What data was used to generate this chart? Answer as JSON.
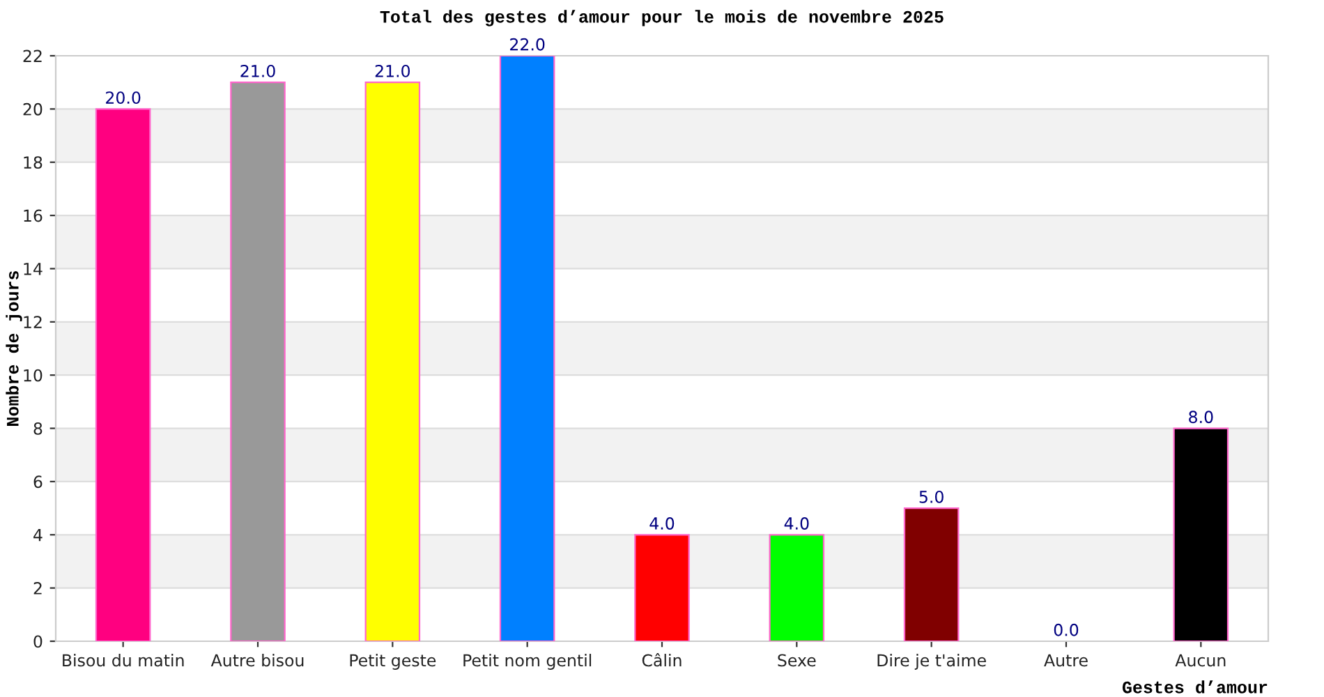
{
  "chart_data": {
    "type": "bar",
    "title": "Total des gestes d’amour pour le mois de novembre 2025",
    "xlabel": "Gestes d’amour",
    "ylabel": "Nombre de jours",
    "categories": [
      "Bisou du matin",
      "Autre bisou",
      "Petit geste",
      "Petit nom gentil",
      "Câlin",
      "Sexe",
      "Dire je t'aime",
      "Autre",
      "Aucun"
    ],
    "values": [
      20,
      21,
      21,
      22,
      4,
      4,
      5,
      0,
      8
    ],
    "value_labels": [
      "20.0",
      "21.0",
      "21.0",
      "22.0",
      "4.0",
      "4.0",
      "5.0",
      "0.0",
      "8.0"
    ],
    "colors": [
      "#ff0080",
      "#999999",
      "#ffff00",
      "#0080ff",
      "#ff0000",
      "#00ff00",
      "#800000",
      "#0000ff",
      "#000000"
    ],
    "ylim": [
      0,
      22
    ],
    "yticks": [
      0,
      2,
      4,
      6,
      8,
      10,
      12,
      14,
      16,
      18,
      20,
      22
    ],
    "grid": "y",
    "bands": [
      {
        "axis": "y",
        "from": 2,
        "to": 4,
        "color": "#f2f2f2"
      },
      {
        "axis": "y",
        "from": 6,
        "to": 8,
        "color": "#f2f2f2"
      },
      {
        "axis": "y",
        "from": 10,
        "to": 12,
        "color": "#f2f2f2"
      },
      {
        "axis": "y",
        "from": 14,
        "to": 16,
        "color": "#f2f2f2"
      },
      {
        "axis": "y",
        "from": 18,
        "to": 20,
        "color": "#f2f2f2"
      }
    ]
  }
}
